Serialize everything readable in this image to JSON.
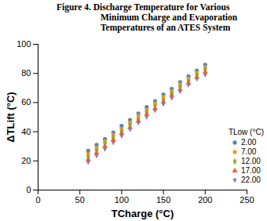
{
  "chart_data": {
    "type": "scatter",
    "title": "Figure 4.  Discharge Temperature for Various Minimum Charge and Evaporation Temperatures of an ATES System",
    "x_label": "TCharge (°C)",
    "y_label": "ΔTLift (°C)",
    "legend_title": "TLow (°C)",
    "legend": "lower right",
    "xlim": [
      0,
      250
    ],
    "xticks": [
      0,
      50,
      100,
      150,
      200,
      250
    ],
    "ylim": [
      0,
      100
    ],
    "yticks": [
      0,
      20,
      40,
      60,
      80,
      100
    ],
    "x": [
      60,
      70,
      80,
      90,
      100,
      110,
      120,
      130,
      140,
      150,
      160,
      170,
      180,
      190,
      200
    ],
    "series": [
      {
        "name": "2.00",
        "color": "#5E81B5",
        "marker": "circle",
        "values": [
          27,
          31,
          35,
          39.5,
          44,
          48,
          52.5,
          57,
          61,
          65.5,
          69.5,
          74,
          78,
          82,
          86
        ]
      },
      {
        "name": "7.00",
        "color": "#E19C24",
        "marker": "square",
        "values": [
          25,
          29,
          33.5,
          38,
          42,
          46.5,
          51,
          55,
          59.5,
          64,
          68,
          72.5,
          76.5,
          80.5,
          84.5
        ]
      },
      {
        "name": "12.00",
        "color": "#8FB032",
        "marker": "diamond",
        "values": [
          23,
          27.5,
          32,
          36,
          40.5,
          45,
          49,
          53.5,
          58,
          62,
          66.5,
          71,
          75,
          79,
          83
        ]
      },
      {
        "name": "17.00",
        "color": "#EB6235",
        "marker": "triangle",
        "values": [
          21,
          25.5,
          30,
          34.5,
          39,
          43,
          47.5,
          52,
          56,
          60.5,
          65,
          69,
          73.5,
          77.5,
          81
        ]
      },
      {
        "name": "22.00",
        "color": "#8778B3",
        "marker": "triangle-down",
        "values": [
          19,
          23.5,
          28,
          32.5,
          37,
          41.5,
          46,
          50,
          54.5,
          59,
          63,
          67.5,
          72,
          76,
          79
        ]
      }
    ]
  }
}
